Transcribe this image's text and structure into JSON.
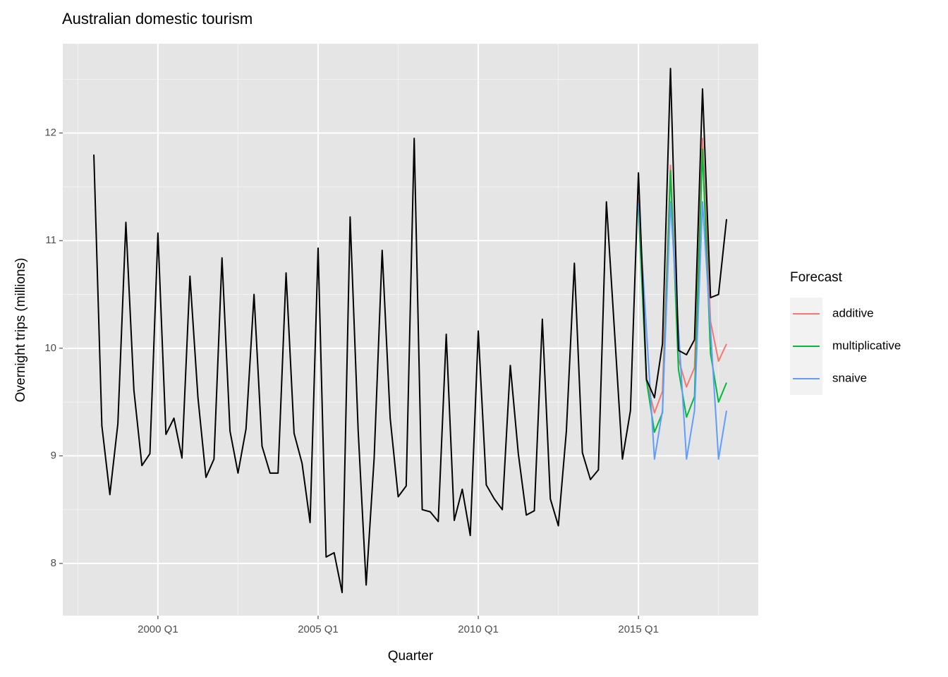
{
  "chart_data": {
    "type": "line",
    "title": "Australian domestic tourism",
    "x_label": "Quarter",
    "y_label": "Overnight trips (millions)",
    "x": [
      1998,
      1998.25,
      1998.5,
      1998.75,
      1999,
      1999.25,
      1999.5,
      1999.75,
      2000,
      2000.25,
      2000.5,
      2000.75,
      2001,
      2001.25,
      2001.5,
      2001.75,
      2002,
      2002.25,
      2002.5,
      2002.75,
      2003,
      2003.25,
      2003.5,
      2003.75,
      2004,
      2004.25,
      2004.5,
      2004.75,
      2005,
      2005.25,
      2005.5,
      2005.75,
      2006,
      2006.25,
      2006.5,
      2006.75,
      2007,
      2007.25,
      2007.5,
      2007.75,
      2008,
      2008.25,
      2008.5,
      2008.75,
      2009,
      2009.25,
      2009.5,
      2009.75,
      2010,
      2010.25,
      2010.5,
      2010.75,
      2011,
      2011.25,
      2011.5,
      2011.75,
      2012,
      2012.25,
      2012.5,
      2012.75,
      2013,
      2013.25,
      2013.5,
      2013.75,
      2014,
      2014.25,
      2014.5,
      2014.75,
      2015,
      2015.25,
      2015.5,
      2015.75,
      2016,
      2016.25,
      2016.5,
      2016.75,
      2017,
      2017.25,
      2017.5,
      2017.75
    ],
    "values": [
      11.8,
      9.28,
      8.64,
      9.3,
      11.17,
      9.61,
      8.91,
      9.02,
      11.07,
      9.2,
      9.35,
      8.98,
      10.67,
      9.54,
      8.8,
      8.97,
      10.84,
      9.23,
      8.84,
      9.25,
      10.5,
      9.09,
      8.84,
      8.84,
      10.7,
      9.21,
      8.93,
      8.38,
      10.93,
      8.06,
      8.1,
      7.73,
      11.22,
      9.24,
      7.8,
      8.98,
      10.91,
      9.35,
      8.62,
      8.72,
      11.95,
      8.5,
      8.48,
      8.39,
      10.13,
      8.4,
      8.69,
      8.26,
      10.16,
      8.73,
      8.6,
      8.5,
      9.84,
      9.02,
      8.45,
      8.49,
      10.27,
      8.6,
      8.35,
      9.23,
      10.79,
      9.03,
      8.78,
      8.87,
      11.36,
      10.17,
      8.97,
      9.42,
      11.63,
      9.71,
      9.54,
      10.04,
      12.6,
      9.98,
      9.94,
      10.08,
      12.41,
      10.47,
      10.5,
      11.2
    ],
    "color": "#000000",
    "legend_title": "Forecast",
    "series": [
      {
        "name": "additive",
        "color": "#f8766d",
        "x": [
          2015,
          2015.25,
          2015.5,
          2015.75,
          2016,
          2016.25,
          2016.5,
          2016.75,
          2017,
          2017.25,
          2017.5,
          2017.75
        ],
        "values": [
          11.4,
          9.7,
          9.4,
          9.6,
          11.7,
          9.9,
          9.64,
          9.82,
          11.95,
          10.25,
          9.88,
          10.04
        ]
      },
      {
        "name": "multiplicative",
        "color": "#00ba38",
        "x": [
          2015,
          2015.25,
          2015.5,
          2015.75,
          2016,
          2016.25,
          2016.5,
          2016.75,
          2017,
          2017.25,
          2017.5,
          2017.75
        ],
        "values": [
          11.3,
          9.7,
          9.22,
          9.4,
          11.65,
          9.8,
          9.36,
          9.55,
          11.85,
          9.95,
          9.5,
          9.68
        ]
      },
      {
        "name": "snaive",
        "color": "#619cff",
        "x": [
          2015,
          2015.25,
          2015.5,
          2015.75,
          2016,
          2016.25,
          2016.5,
          2016.75,
          2017,
          2017.25,
          2017.5,
          2017.75
        ],
        "values": [
          11.36,
          10.17,
          8.97,
          9.42,
          11.36,
          10.17,
          8.97,
          9.42,
          11.36,
          10.17,
          8.97,
          9.42
        ]
      }
    ],
    "xlim": [
      1997.03,
      2018.74
    ],
    "ylim": [
      7.515,
      12.83
    ],
    "xticks": [
      {
        "value": 2000,
        "label": "2000 Q1"
      },
      {
        "value": 2005,
        "label": "2005 Q1"
      },
      {
        "value": 2010,
        "label": "2010 Q1"
      },
      {
        "value": 2015,
        "label": "2015 Q1"
      }
    ],
    "yticks": [
      8,
      9,
      10,
      11,
      12
    ],
    "grid": true
  }
}
